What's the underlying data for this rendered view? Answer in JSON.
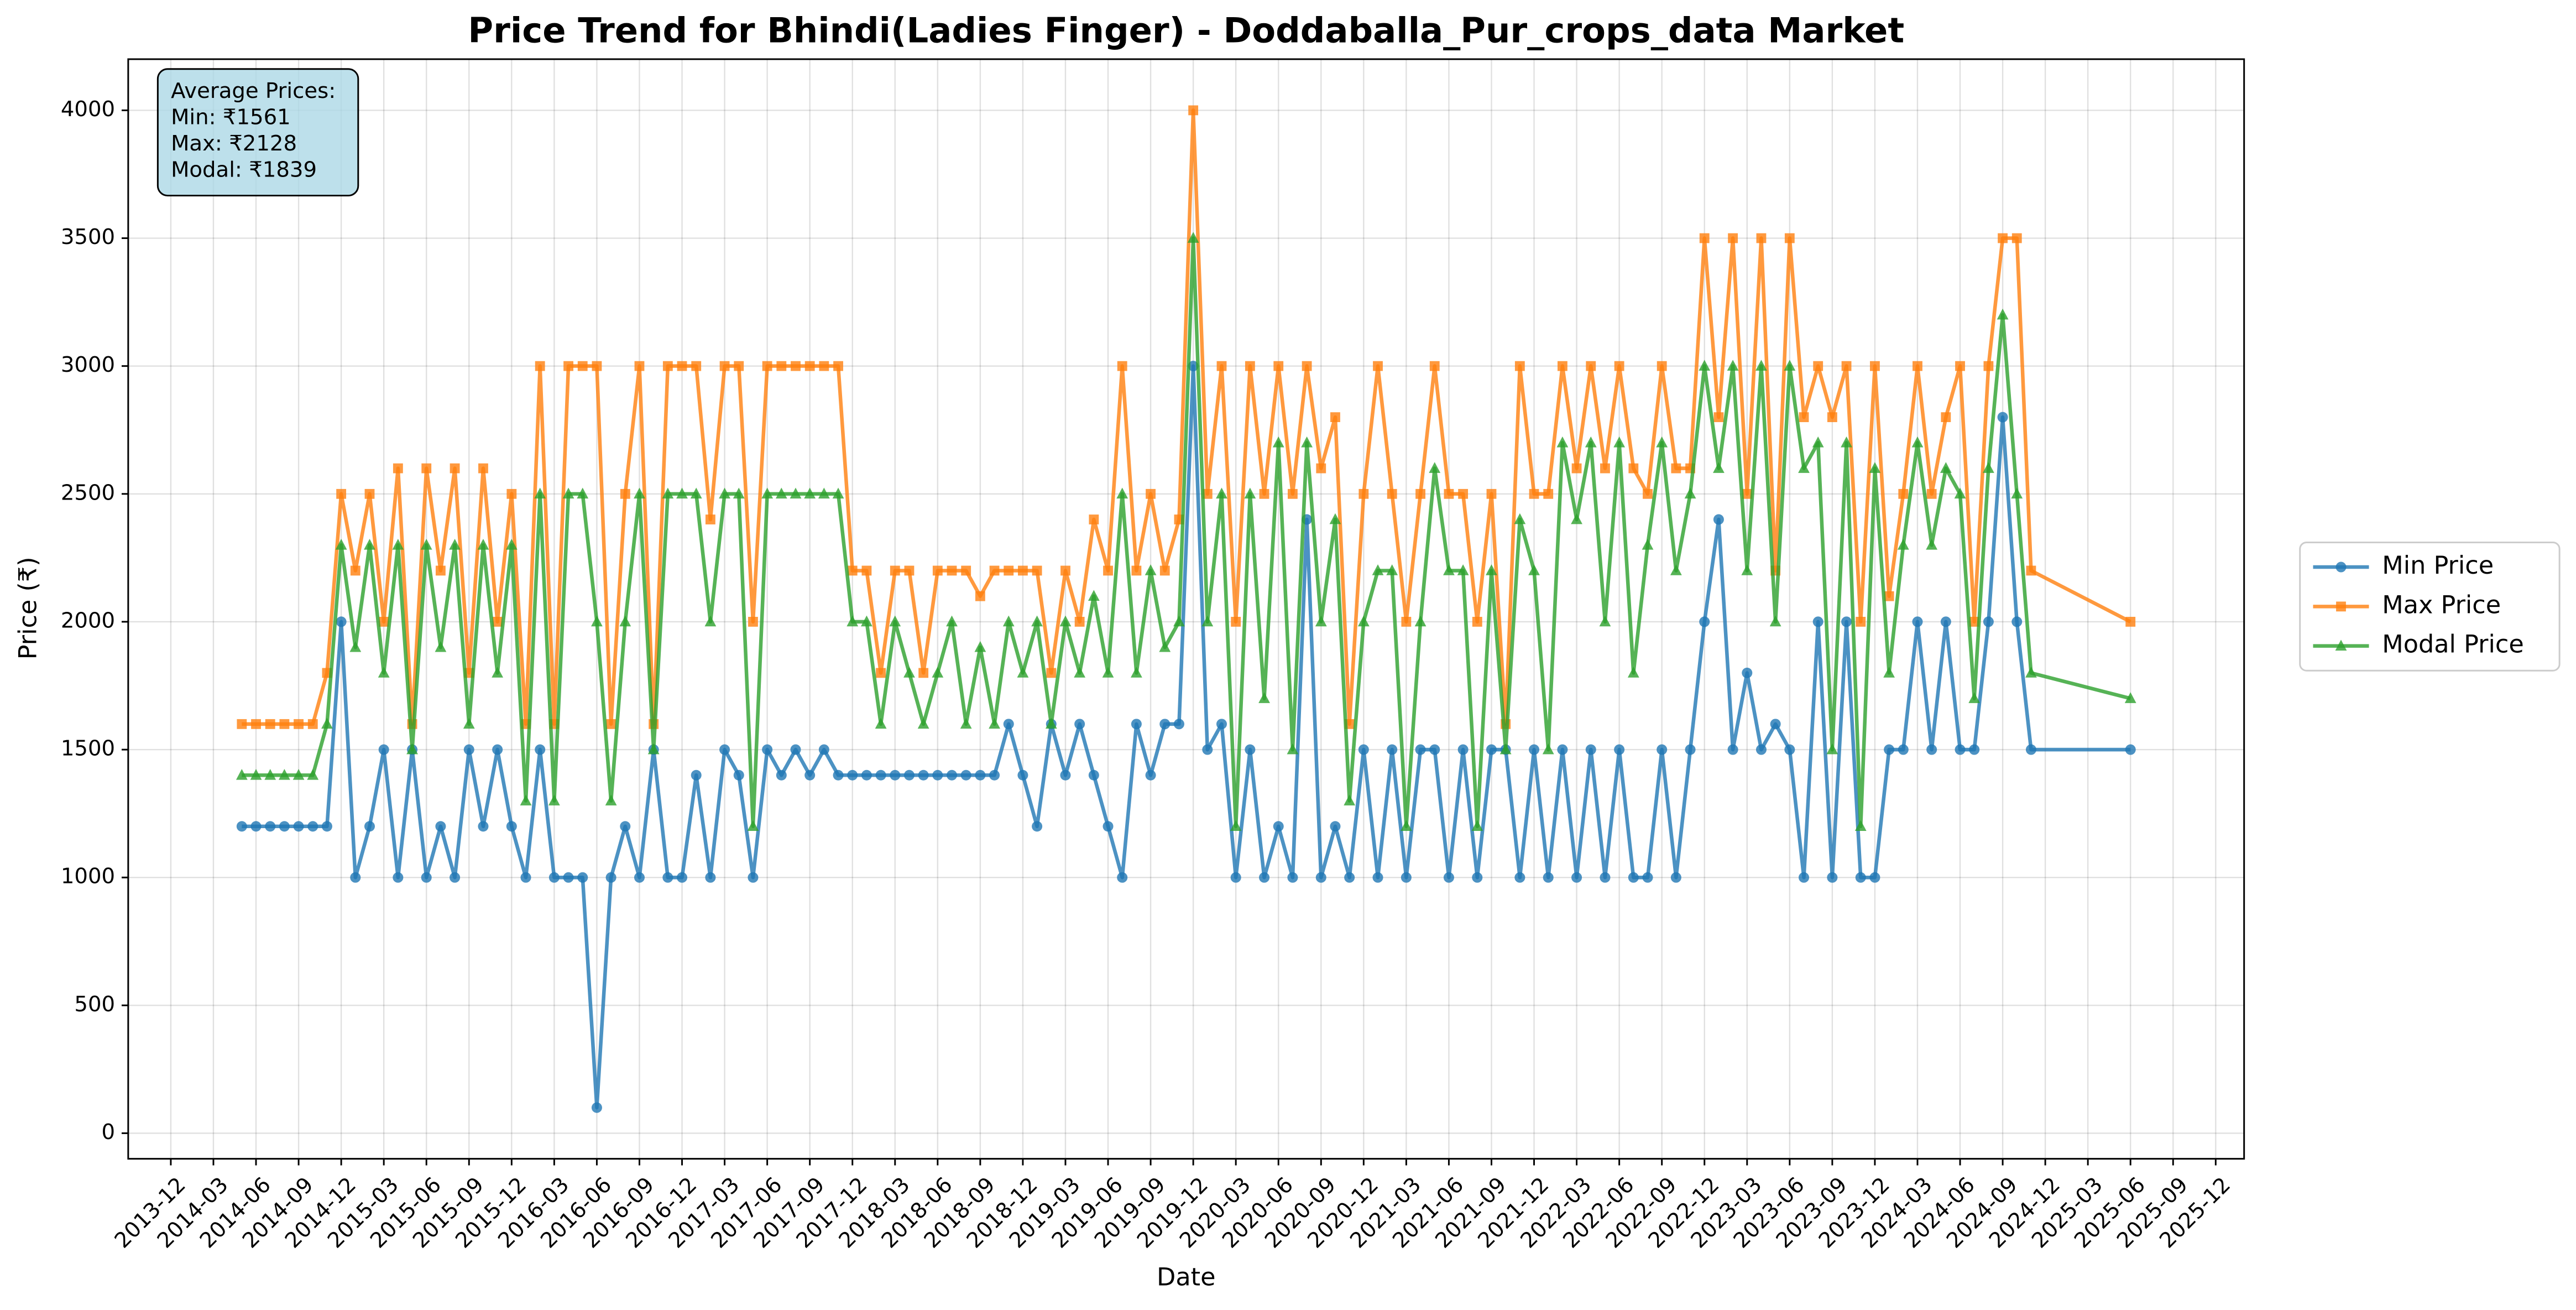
{
  "chart_data": {
    "type": "line",
    "title": "Price Trend for Bhindi(Ladies Finger) - Doddaballa_Pur_crops_data Market",
    "x_label": "Date",
    "y_label": "Price (₹)",
    "annotation": [
      "Average Prices:",
      "Min: ₹1561",
      "Max: ₹2128",
      "Modal: ₹1839"
    ],
    "grid": true,
    "legend_position": "right",
    "xlim": [
      "2013-09",
      "2026-02"
    ],
    "ylim": [
      -100,
      4200
    ],
    "yticks": [
      0,
      500,
      1000,
      1500,
      2000,
      2500,
      3000,
      3500,
      4000
    ],
    "xticks": [
      "2013-12",
      "2014-03",
      "2014-06",
      "2014-09",
      "2014-12",
      "2015-03",
      "2015-06",
      "2015-09",
      "2015-12",
      "2016-03",
      "2016-06",
      "2016-09",
      "2016-12",
      "2017-03",
      "2017-06",
      "2017-09",
      "2017-12",
      "2018-03",
      "2018-06",
      "2018-09",
      "2018-12",
      "2019-03",
      "2019-06",
      "2019-09",
      "2019-12",
      "2020-03",
      "2020-06",
      "2020-09",
      "2020-12",
      "2021-03",
      "2021-06",
      "2021-09",
      "2021-12",
      "2022-03",
      "2022-06",
      "2022-09",
      "2022-12",
      "2023-03",
      "2023-06",
      "2023-09",
      "2023-12",
      "2024-03",
      "2024-06",
      "2024-09",
      "2024-12",
      "2025-03",
      "2025-06",
      "2025-09",
      "2025-12"
    ],
    "x": [
      "2014-05",
      "2014-06",
      "2014-07",
      "2014-08",
      "2014-09",
      "2014-10",
      "2014-11",
      "2014-12",
      "2015-01",
      "2015-02",
      "2015-03",
      "2015-04",
      "2015-05",
      "2015-06",
      "2015-07",
      "2015-08",
      "2015-09",
      "2015-10",
      "2015-11",
      "2015-12",
      "2016-01",
      "2016-02",
      "2016-03",
      "2016-04",
      "2016-05",
      "2016-06",
      "2016-07",
      "2016-08",
      "2016-09",
      "2016-10",
      "2016-11",
      "2016-12",
      "2017-01",
      "2017-02",
      "2017-03",
      "2017-04",
      "2017-05",
      "2017-06",
      "2017-07",
      "2017-08",
      "2017-09",
      "2017-10",
      "2017-11",
      "2017-12",
      "2018-01",
      "2018-02",
      "2018-03",
      "2018-04",
      "2018-05",
      "2018-06",
      "2018-07",
      "2018-08",
      "2018-09",
      "2018-10",
      "2018-11",
      "2018-12",
      "2019-01",
      "2019-02",
      "2019-03",
      "2019-04",
      "2019-05",
      "2019-06",
      "2019-07",
      "2019-08",
      "2019-09",
      "2019-10",
      "2019-11",
      "2019-12",
      "2020-01",
      "2020-02",
      "2020-03",
      "2020-04",
      "2020-05",
      "2020-06",
      "2020-07",
      "2020-08",
      "2020-09",
      "2020-10",
      "2020-11",
      "2020-12",
      "2021-01",
      "2021-02",
      "2021-03",
      "2021-04",
      "2021-05",
      "2021-06",
      "2021-07",
      "2021-08",
      "2021-09",
      "2021-10",
      "2021-11",
      "2021-12",
      "2022-01",
      "2022-02",
      "2022-03",
      "2022-04",
      "2022-05",
      "2022-06",
      "2022-07",
      "2022-08",
      "2022-09",
      "2022-10",
      "2022-11",
      "2022-12",
      "2023-01",
      "2023-02",
      "2023-03",
      "2023-04",
      "2023-05",
      "2023-06",
      "2023-07",
      "2023-08",
      "2023-09",
      "2023-10",
      "2023-11",
      "2023-12",
      "2024-01",
      "2024-02",
      "2024-03",
      "2024-04",
      "2024-05",
      "2024-06",
      "2024-07",
      "2024-08",
      "2024-09",
      "2024-10",
      "2024-11",
      "2025-06"
    ],
    "series": [
      {
        "name": "Min Price",
        "color": "#1f77b4",
        "marker": "circle",
        "values": [
          1200,
          1200,
          1200,
          1200,
          1200,
          1200,
          1200,
          2000,
          1000,
          1200,
          1500,
          1000,
          1500,
          1000,
          1200,
          1000,
          1500,
          1200,
          1500,
          1200,
          1000,
          1500,
          1000,
          1000,
          1000,
          100,
          1000,
          1200,
          1000,
          1500,
          1000,
          1000,
          1400,
          1000,
          1500,
          1400,
          1000,
          1500,
          1400,
          1500,
          1400,
          1500,
          1400,
          1400,
          1400,
          1400,
          1400,
          1400,
          1400,
          1400,
          1400,
          1400,
          1400,
          1400,
          1600,
          1400,
          1200,
          1600,
          1400,
          1600,
          1400,
          1200,
          1000,
          1600,
          1400,
          1600,
          1600,
          3000,
          1500,
          1600,
          1000,
          1500,
          1000,
          1200,
          1000,
          2400,
          1000,
          1200,
          1000,
          1500,
          1000,
          1500,
          1000,
          1500,
          1500,
          1000,
          1500,
          1000,
          1500,
          1500,
          1000,
          1500,
          1000,
          1500,
          1000,
          1500,
          1000,
          1500,
          1000,
          1000,
          1500,
          1000,
          1500,
          2000,
          2400,
          1500,
          1800,
          1500,
          1600,
          1500,
          1000,
          2000,
          1000,
          2000,
          1000,
          1000,
          1500,
          1500,
          2000,
          1500,
          2000,
          1500,
          1500,
          2000,
          2800,
          2000,
          1500,
          1500
        ]
      },
      {
        "name": "Max Price",
        "color": "#ff7f0e",
        "marker": "square",
        "values": [
          1600,
          1600,
          1600,
          1600,
          1600,
          1600,
          1800,
          2500,
          2200,
          2500,
          2000,
          2600,
          1600,
          2600,
          2200,
          2600,
          1800,
          2600,
          2000,
          2500,
          1600,
          3000,
          1600,
          3000,
          3000,
          3000,
          1600,
          2500,
          3000,
          1600,
          3000,
          3000,
          3000,
          2400,
          3000,
          3000,
          2000,
          3000,
          3000,
          3000,
          3000,
          3000,
          3000,
          2200,
          2200,
          1800,
          2200,
          2200,
          1800,
          2200,
          2200,
          2200,
          2100,
          2200,
          2200,
          2200,
          2200,
          1800,
          2200,
          2000,
          2400,
          2200,
          3000,
          2200,
          2500,
          2200,
          2400,
          4000,
          2500,
          3000,
          2000,
          3000,
          2500,
          3000,
          2500,
          3000,
          2600,
          2800,
          1600,
          2500,
          3000,
          2500,
          2000,
          2500,
          3000,
          2500,
          2500,
          2000,
          2500,
          1600,
          3000,
          2500,
          2500,
          3000,
          2600,
          3000,
          2600,
          3000,
          2600,
          2500,
          3000,
          2600,
          2600,
          3500,
          2800,
          3500,
          2500,
          3500,
          2200,
          3500,
          2800,
          3000,
          2800,
          3000,
          2000,
          3000,
          2100,
          2500,
          3000,
          2500,
          2800,
          3000,
          2000,
          3000,
          3500,
          3500,
          2200,
          2000
        ]
      },
      {
        "name": "Modal Price",
        "color": "#2ca02c",
        "marker": "triangle",
        "values": [
          1400,
          1400,
          1400,
          1400,
          1400,
          1400,
          1600,
          2300,
          1900,
          2300,
          1800,
          2300,
          1500,
          2300,
          1900,
          2300,
          1600,
          2300,
          1800,
          2300,
          1300,
          2500,
          1300,
          2500,
          2500,
          2000,
          1300,
          2000,
          2500,
          1500,
          2500,
          2500,
          2500,
          2000,
          2500,
          2500,
          1200,
          2500,
          2500,
          2500,
          2500,
          2500,
          2500,
          2000,
          2000,
          1600,
          2000,
          1800,
          1600,
          1800,
          2000,
          1600,
          1900,
          1600,
          2000,
          1800,
          2000,
          1600,
          2000,
          1800,
          2100,
          1800,
          2500,
          1800,
          2200,
          1900,
          2000,
          3500,
          2000,
          2500,
          1200,
          2500,
          1700,
          2700,
          1500,
          2700,
          2000,
          2400,
          1300,
          2000,
          2200,
          2200,
          1200,
          2000,
          2600,
          2200,
          2200,
          1200,
          2200,
          1500,
          2400,
          2200,
          1500,
          2700,
          2400,
          2700,
          2000,
          2700,
          1800,
          2300,
          2700,
          2200,
          2500,
          3000,
          2600,
          3000,
          2200,
          3000,
          2000,
          3000,
          2600,
          2700,
          1500,
          2700,
          1200,
          2600,
          1800,
          2300,
          2700,
          2300,
          2600,
          2500,
          1700,
          2600,
          3200,
          2500,
          1800,
          1700
        ]
      }
    ]
  }
}
